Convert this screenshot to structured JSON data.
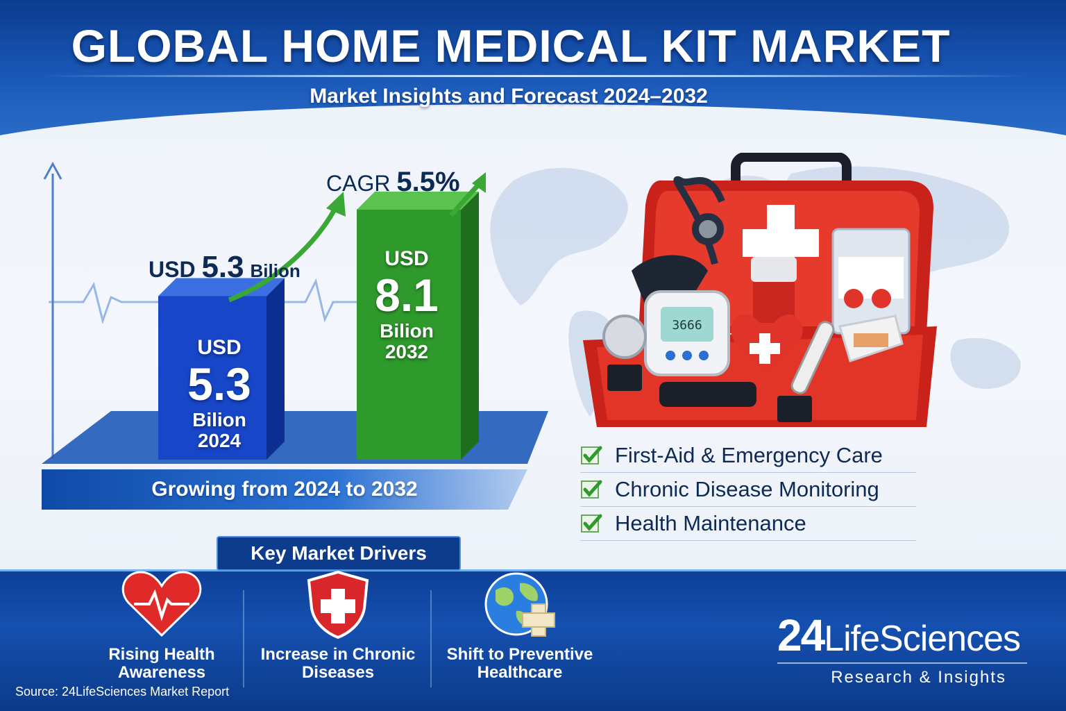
{
  "header": {
    "title": "GLOBAL HOME MEDICAL KIT MARKET",
    "subtitle": "Market Insights and Forecast 2024–2032"
  },
  "chart_data": {
    "type": "bar",
    "categories": [
      "2024",
      "2032"
    ],
    "values": [
      5.3,
      8.1
    ],
    "ylim": [
      0,
      9
    ],
    "unit": "USD Billion",
    "colors": [
      "#1746c9",
      "#2f9a2c"
    ],
    "cagr_label": "CAGR",
    "cagr_value": "5.5%",
    "annotation": {
      "prefix": "USD",
      "value": "5.3",
      "unit": "Bilion"
    },
    "bar_labels": [
      {
        "usd": "USD",
        "value": "5.3",
        "unit": "Bilion",
        "year": "2024"
      },
      {
        "usd": "USD",
        "value": "8.1",
        "unit": "Bilion",
        "year": "2032"
      }
    ],
    "footer": "Growing from 2024 to 2032"
  },
  "checklist": [
    "First-Aid & Emergency Care",
    "Chronic Disease Monitoring",
    "Health Maintenance"
  ],
  "kit": {
    "monitor_display": "3666"
  },
  "drivers": {
    "title": "Key Market Drivers",
    "items": [
      {
        "label_line1": "Rising Health",
        "label_line2": "Awareness",
        "icon": "heart-pulse-icon"
      },
      {
        "label_line1": "Increase in Chronic",
        "label_line2": "Diseases",
        "icon": "shield-cross-icon"
      },
      {
        "label_line1": "Shift to Preventive",
        "label_line2": "Healthcare",
        "icon": "globe-cross-icon"
      }
    ]
  },
  "brand": {
    "num": "24",
    "name": "LifeSciences",
    "tagline": "Research & Insights"
  },
  "source": "Source: 24LifeSciences Market Report",
  "colors": {
    "primary": "#0d3f96",
    "accent": "#2f9a2c",
    "kit_red": "#d42a1f",
    "text_dark": "#0d2a55"
  }
}
